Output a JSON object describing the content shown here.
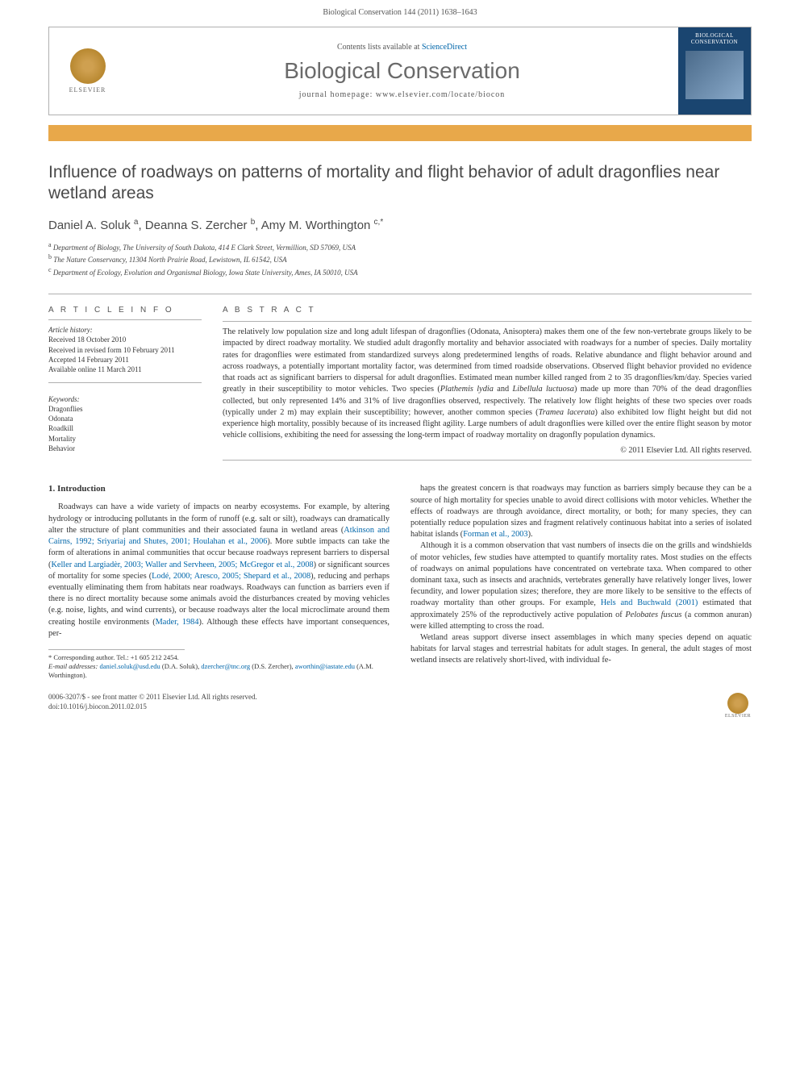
{
  "header": {
    "citation": "Biological Conservation 144 (2011) 1638–1643",
    "contents_prefix": "Contents lists available at ",
    "contents_link": "ScienceDirect",
    "journal": "Biological Conservation",
    "homepage": "journal homepage: www.elsevier.com/locate/biocon",
    "publisher_logo_text": "ELSEVIER",
    "cover_title": "BIOLOGICAL CONSERVATION"
  },
  "article": {
    "title": "Influence of roadways on patterns of mortality and flight behavior of adult dragonflies near wetland areas",
    "authors_html": "Daniel A. Soluk <sup>a</sup>, Deanna S. Zercher <sup>b</sup>, Amy M. Worthington <sup>c,*</sup>",
    "affiliations": [
      "a Department of Biology, The University of South Dakota, 414 E Clark Street, Vermillion, SD 57069, USA",
      "b The Nature Conservancy, 11304 North Prairie Road, Lewistown, IL 61542, USA",
      "c Department of Ecology, Evolution and Organismal Biology, Iowa State University, Ames, IA 50010, USA"
    ]
  },
  "info": {
    "heading": "A R T I C L E   I N F O",
    "history_label": "Article history:",
    "history": [
      "Received 18 October 2010",
      "Received in revised form 10 February 2011",
      "Accepted 14 February 2011",
      "Available online 11 March 2011"
    ],
    "keywords_label": "Keywords:",
    "keywords": [
      "Dragonflies",
      "Odonata",
      "Roadkill",
      "Mortality",
      "Behavior"
    ]
  },
  "abstract": {
    "heading": "A B S T R A C T",
    "text": "The relatively low population size and long adult lifespan of dragonflies (Odonata, Anisoptera) makes them one of the few non-vertebrate groups likely to be impacted by direct roadway mortality. We studied adult dragonfly mortality and behavior associated with roadways for a number of species. Daily mortality rates for dragonflies were estimated from standardized surveys along predetermined lengths of roads. Relative abundance and flight behavior around and across roadways, a potentially important mortality factor, was determined from timed roadside observations. Observed flight behavior provided no evidence that roads act as significant barriers to dispersal for adult dragonflies. Estimated mean number killed ranged from 2 to 35 dragonflies/km/day. Species varied greatly in their susceptibility to motor vehicles. Two species (Plathemis lydia and Libellula luctuosa) made up more than 70% of the dead dragonflies collected, but only represented 14% and 31% of live dragonflies observed, respectively. The relatively low flight heights of these two species over roads (typically under 2 m) may explain their susceptibility; however, another common species (Tramea lacerata) also exhibited low flight height but did not experience high mortality, possibly because of its increased flight agility. Large numbers of adult dragonflies were killed over the entire flight season by motor vehicle collisions, exhibiting the need for assessing the long-term impact of roadway mortality on dragonfly population dynamics.",
    "copyright": "© 2011 Elsevier Ltd. All rights reserved."
  },
  "body": {
    "section_number": "1.",
    "section_title": "Introduction",
    "col1_p1_a": "Roadways can have a wide variety of impacts on nearby ecosystems. For example, by altering hydrology or introducing pollutants in the form of runoff (e.g. salt or silt), roadways can dramatically alter the structure of plant communities and their associated fauna in wetland areas (",
    "col1_p1_cite1": "Atkinson and Cairns, 1992; Sriyariaj and Shutes, 2001; Houlahan et al., 2006",
    "col1_p1_b": "). More subtle impacts can take the form of alterations in animal communities that occur because roadways represent barriers to dispersal (",
    "col1_p1_cite2": "Keller and Largiadèr, 2003; Waller and Servheen, 2005; McGregor et al., 2008",
    "col1_p1_c": ") or significant sources of mortality for some species (",
    "col1_p1_cite3": "Lodé, 2000; Aresco, 2005; Shepard et al., 2008",
    "col1_p1_d": "), reducing and perhaps eventually eliminating them from habitats near roadways. Roadways can function as barriers even if there is no direct mortality because some animals avoid the disturbances created by moving vehicles (e.g. noise, lights, and wind currents), or because roadways alter the local microclimate around them creating hostile environments (",
    "col1_p1_cite4": "Mader, 1984",
    "col1_p1_e": "). Although these effects have important consequences, per-",
    "col2_p1_a": "haps the greatest concern is that roadways may function as barriers simply because they can be a source of high mortality for species unable to avoid direct collisions with motor vehicles. Whether the effects of roadways are through avoidance, direct mortality, or both; for many species, they can potentially reduce population sizes and fragment relatively continuous habitat into a series of isolated habitat islands (",
    "col2_p1_cite1": "Forman et al., 2003",
    "col2_p1_b": ").",
    "col2_p2_a": "Although it is a common observation that vast numbers of insects die on the grills and windshields of motor vehicles, few studies have attempted to quantify mortality rates. Most studies on the effects of roadways on animal populations have concentrated on vertebrate taxa. When compared to other dominant taxa, such as insects and arachnids, vertebrates generally have relatively longer lives, lower fecundity, and lower population sizes; therefore, they are more likely to be sensitive to the effects of roadway mortality than other groups. For example, ",
    "col2_p2_cite1": "Hels and Buchwald (2001)",
    "col2_p2_b": " estimated that approximately 25% of the reproductively active population of Pelobates fuscus (a common anuran) were killed attempting to cross the road.",
    "col2_p3": "Wetland areas support diverse insect assemblages in which many species depend on aquatic habitats for larval stages and terrestrial habitats for adult stages. In general, the adult stages of most wetland insects are relatively short-lived, with individual fe-"
  },
  "footnotes": {
    "corr": "* Corresponding author. Tel.: +1 605 212 2454.",
    "emails_label": "E-mail addresses: ",
    "email1": "daniel.soluk@usd.edu",
    "email1_who": " (D.A. Soluk), ",
    "email2": "dzercher@tnc.org",
    "email2_who": " (D.S. Zercher), ",
    "email3": "aworthin@iastate.edu",
    "email3_who": " (A.M. Worthington)."
  },
  "footer": {
    "line1": "0006-3207/$ - see front matter © 2011 Elsevier Ltd. All rights reserved.",
    "line2": "doi:10.1016/j.biocon.2011.02.015",
    "logo_text": "ELSEVIER"
  },
  "colors": {
    "orange_bar": "#e8a84a",
    "cover_bg": "#1a4570",
    "link": "#0066aa",
    "rule": "#b0b0b0",
    "heading_gray": "#494949"
  }
}
